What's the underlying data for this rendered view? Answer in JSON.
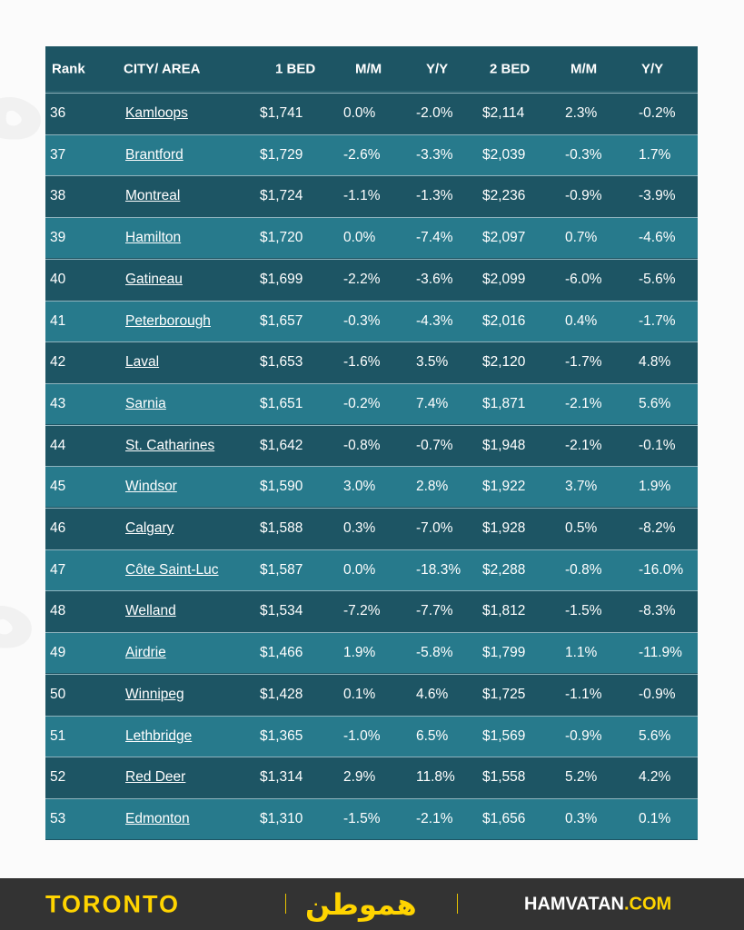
{
  "header": {
    "rank": "Rank",
    "city": "CITY/ AREA",
    "bed1": "1 BED",
    "mm1": "M/M",
    "yy1": "Y/Y",
    "bed2": "2 BED",
    "mm2": "M/M",
    "yy2": "Y/Y"
  },
  "rows": [
    [
      "36",
      "Kamloops",
      "$1,741",
      "0.0%",
      "-2.0%",
      "$2,114",
      "2.3%",
      "-0.2%"
    ],
    [
      "37",
      "Brantford",
      "$1,729",
      "-2.6%",
      "-3.3%",
      "$2,039",
      "-0.3%",
      "1.7%"
    ],
    [
      "38",
      "Montreal",
      "$1,724",
      "-1.1%",
      "-1.3%",
      "$2,236",
      "-0.9%",
      "-3.9%"
    ],
    [
      "39",
      "Hamilton",
      "$1,720",
      "0.0%",
      "-7.4%",
      "$2,097",
      "0.7%",
      "-4.6%"
    ],
    [
      "40",
      "Gatineau",
      "$1,699",
      "-2.2%",
      "-3.6%",
      "$2,099",
      "-6.0%",
      "-5.6%"
    ],
    [
      "41",
      "Peterborough",
      "$1,657",
      "-0.3%",
      "-4.3%",
      "$2,016",
      "0.4%",
      "-1.7%"
    ],
    [
      "42",
      "Laval",
      "$1,653",
      "-1.6%",
      "3.5%",
      "$2,120",
      "-1.7%",
      "4.8%"
    ],
    [
      "43",
      "Sarnia",
      "$1,651",
      "-0.2%",
      "7.4%",
      "$1,871",
      "-2.1%",
      "5.6%"
    ],
    [
      "44",
      "St. Catharines",
      "$1,642",
      "-0.8%",
      "-0.7%",
      "$1,948",
      "-2.1%",
      "-0.1%"
    ],
    [
      "45",
      "Windsor",
      "$1,590",
      "3.0%",
      "2.8%",
      "$1,922",
      "3.7%",
      "1.9%"
    ],
    [
      "46",
      "Calgary",
      "$1,588",
      "0.3%",
      "-7.0%",
      "$1,928",
      "0.5%",
      "-8.2%"
    ],
    [
      "47",
      "Côte Saint-Luc",
      "$1,587",
      "0.0%",
      "-18.3%",
      "$2,288",
      "-0.8%",
      "-16.0%"
    ],
    [
      "48",
      "Welland",
      "$1,534",
      "-7.2%",
      "-7.7%",
      "$1,812",
      "-1.5%",
      "-8.3%"
    ],
    [
      "49",
      "Airdrie",
      "$1,466",
      "1.9%",
      "-5.8%",
      "$1,799",
      "1.1%",
      "-11.9%"
    ],
    [
      "50",
      "Winnipeg",
      "$1,428",
      "0.1%",
      "4.6%",
      "$1,725",
      "-1.1%",
      "-0.9%"
    ],
    [
      "51",
      "Lethbridge",
      "$1,365",
      "-1.0%",
      "6.5%",
      "$1,569",
      "-0.9%",
      "5.6%"
    ],
    [
      "52",
      "Red Deer",
      "$1,314",
      "2.9%",
      "11.8%",
      "$1,558",
      "5.2%",
      "4.2%"
    ],
    [
      "53",
      "Edmonton",
      "$1,310",
      "-1.5%",
      "-2.1%",
      "$1,656",
      "0.3%",
      "0.1%"
    ]
  ],
  "footer": {
    "left": "TORONTO",
    "logo": "هموطن",
    "site_main": "HAMVATAN",
    "site_tld": ".COM"
  },
  "colors": {
    "dark_row": "#1d5564",
    "light_row": "#277a8c",
    "footer_bg": "#333333",
    "accent": "#ffd400"
  }
}
